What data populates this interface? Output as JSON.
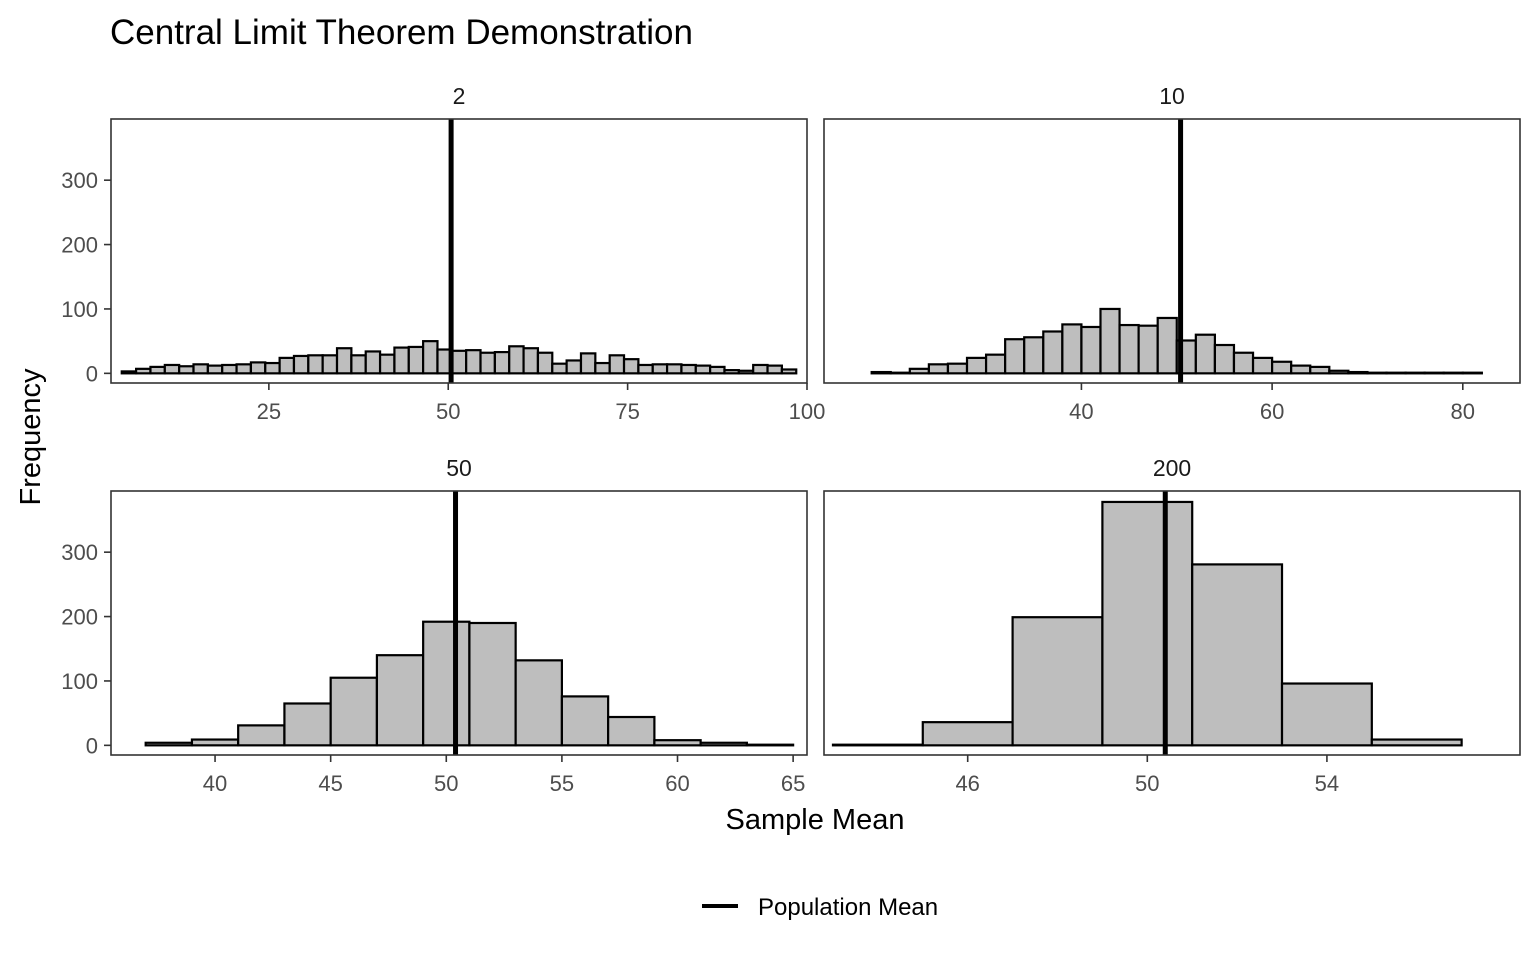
{
  "title": "Central Limit Theorem Demonstration",
  "xlabel": "Sample Mean",
  "ylabel": "Frequency",
  "legend": {
    "label": "Population Mean",
    "position": "bottom-center"
  },
  "colors": {
    "bar_fill": "#bebebe",
    "bar_stroke": "#000000",
    "mean_line": "#000000",
    "panel_border": "#333333",
    "tick_text": "#4d4d4d"
  },
  "chart_data": {
    "type": "bar",
    "subtype": "histogram-facets",
    "population_mean": 50.4,
    "ylim": [
      -15,
      395
    ],
    "y_ticks": [
      0,
      100,
      200,
      300
    ],
    "grid": false,
    "facets": [
      {
        "label": "2",
        "xlim": [
          3,
          100
        ],
        "x_ticks": [
          25,
          50,
          75,
          100
        ],
        "bin_start": 4.5,
        "bin_width": 2,
        "values": [
          3,
          7,
          10,
          13,
          11,
          14,
          12,
          13,
          14,
          17,
          16,
          24,
          27,
          28,
          28,
          39,
          28,
          34,
          29,
          40,
          41,
          50,
          37,
          35,
          36,
          32,
          33,
          42,
          39,
          32,
          15,
          20,
          31,
          16,
          28,
          22,
          13,
          14,
          14,
          13,
          12,
          10,
          5,
          4,
          13,
          12,
          6
        ]
      },
      {
        "label": "10",
        "xlim": [
          13,
          86
        ],
        "x_ticks": [
          40,
          60,
          80
        ],
        "bin_start": 18,
        "bin_width": 2,
        "values": [
          2,
          1,
          7,
          14,
          15,
          24,
          29,
          53,
          56,
          65,
          76,
          72,
          100,
          75,
          74,
          86,
          51,
          60,
          44,
          32,
          24,
          18,
          12,
          10,
          4,
          2,
          1,
          1,
          1,
          1,
          1,
          1
        ]
      },
      {
        "label": "50",
        "xlim": [
          35.5,
          65.6
        ],
        "x_ticks": [
          40,
          45,
          50,
          55,
          60,
          65
        ],
        "bin_start": 37,
        "bin_width": 2,
        "values": [
          4,
          9,
          31,
          65,
          105,
          140,
          192,
          190,
          132,
          76,
          44,
          8,
          4,
          1
        ]
      },
      {
        "label": "200",
        "xlim": [
          42.8,
          58.3
        ],
        "x_ticks": [
          46,
          50,
          54
        ],
        "bin_start": 43,
        "bin_width": 2,
        "values": [
          1,
          36,
          199,
          378,
          281,
          96,
          9
        ]
      }
    ]
  }
}
